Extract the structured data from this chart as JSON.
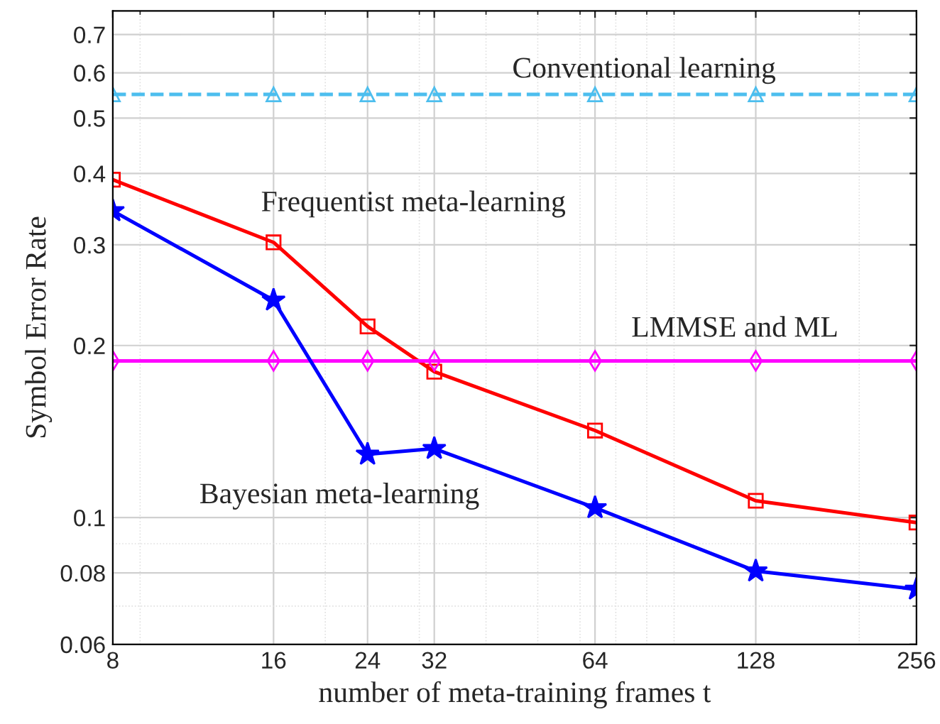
{
  "chart_data": {
    "type": "line",
    "xlabel": "number of meta-training frames t",
    "ylabel": "Symbol Error Rate",
    "x": [
      8,
      16,
      24,
      32,
      64,
      128,
      256
    ],
    "series": [
      {
        "name": "Conventional learning",
        "color": "#4dbeee",
        "values": [
          0.55,
          0.55,
          0.55,
          0.55,
          0.55,
          0.55,
          0.55
        ],
        "marker": "triangle",
        "line_style": "dashed"
      },
      {
        "name": "Frequentist meta-learning",
        "color": "#ff0000",
        "values": [
          0.39,
          0.303,
          0.216,
          0.18,
          0.142,
          0.107,
          0.098
        ],
        "marker": "square",
        "line_style": "solid"
      },
      {
        "name": "LMMSE and ML",
        "color": "#ff00ff",
        "values": [
          0.188,
          0.188,
          0.188,
          0.188,
          0.188,
          0.188,
          0.188
        ],
        "marker": "diamond",
        "line_style": "solid"
      },
      {
        "name": "Bayesian meta-learning",
        "color": "#0000ff",
        "values": [
          0.344,
          0.24,
          0.129,
          0.132,
          0.104,
          0.0806,
          0.0749
        ],
        "marker": "star",
        "line_style": "solid"
      }
    ],
    "log": "xy",
    "xlim": [
      8,
      256
    ],
    "ylim": [
      0.06,
      0.77
    ],
    "xticks": [
      8,
      16,
      24,
      32,
      64,
      128,
      256
    ],
    "yticks": [
      0.06,
      0.08,
      0.1,
      0.2,
      0.3,
      0.4,
      0.5,
      0.6,
      0.7
    ],
    "grid": true,
    "legend": false
  }
}
